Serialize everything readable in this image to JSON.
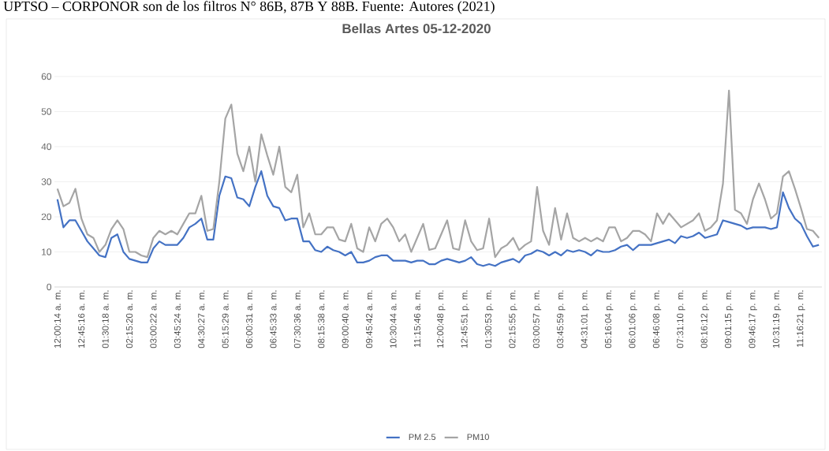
{
  "chart_data": {
    "type": "line",
    "title": "Bellas Artes 05-12-2020",
    "annotations": [
      "UPTSO – CORPONOR son de los filtros N° 86B, 87B Y 88B. Fuente: Autores (2021)"
    ],
    "categories": [
      "12:00:14 a. m.",
      null,
      null,
      null,
      "12:45:16 a. m.",
      null,
      null,
      null,
      "01:30:18 a. m.",
      null,
      null,
      null,
      "02:15:20 a. m.",
      null,
      null,
      null,
      "03:00:22 a. m.",
      null,
      null,
      null,
      "03:45:24 a. m.",
      null,
      null,
      null,
      "04:30:27 a. m.",
      null,
      null,
      null,
      "05:15:29 a. m.",
      null,
      null,
      null,
      "06:00:31 a. m.",
      null,
      null,
      null,
      "06:45:33 a. m.",
      null,
      null,
      null,
      "07:30:36 a. m.",
      null,
      null,
      null,
      "08:15:38 a. m.",
      null,
      null,
      null,
      "09:00:40 a. m.",
      null,
      null,
      null,
      "09:45:42 a. m.",
      null,
      null,
      null,
      "10:30:44 a. m.",
      null,
      null,
      null,
      "11:15:46 a. m.",
      null,
      null,
      null,
      "12:00:48 p. m.",
      null,
      null,
      null,
      "12:45:51 p. m.",
      null,
      null,
      null,
      "01:30:53 p. m.",
      null,
      null,
      null,
      "02:15:55 p. m.",
      null,
      null,
      null,
      "03:00:57 p. m.",
      null,
      null,
      null,
      "03:45:59 p. m.",
      null,
      null,
      null,
      "04:31:01 p. m.",
      null,
      null,
      null,
      "05:16:04 p. m.",
      null,
      null,
      null,
      "06:01:06 p. m.",
      null,
      null,
      null,
      "06:46:08 p. m.",
      null,
      null,
      null,
      "07:31:10 p. m.",
      null,
      null,
      null,
      "08:16:12 p. m.",
      null,
      null,
      null,
      "09:01:15 p. m.",
      null,
      null,
      null,
      "09:46:17 p. m.",
      null,
      null,
      null,
      "10:31:19 p. m.",
      null,
      null,
      null,
      "11:16:21 p. m.",
      null,
      null,
      null
    ],
    "series": [
      {
        "name": "PM 2.5",
        "color": "#4472c4",
        "values": [
          25,
          17,
          19,
          19,
          16,
          13,
          11,
          9,
          8.5,
          14,
          15,
          10,
          8,
          7.5,
          7,
          7,
          11,
          13,
          12,
          12,
          12,
          14,
          17,
          18,
          19.5,
          13.5,
          13.5,
          26,
          31.5,
          31,
          25.5,
          25,
          23,
          28.5,
          33,
          26,
          23,
          22.5,
          19,
          19.5,
          19.5,
          13,
          13,
          10.5,
          10,
          11.5,
          10.5,
          10,
          9,
          10,
          7,
          7,
          7.5,
          8.5,
          9,
          9,
          7.5,
          7.5,
          7.5,
          7,
          7.5,
          7.5,
          6.5,
          6.5,
          7.5,
          8,
          7.5,
          7,
          7.5,
          8.5,
          6.5,
          6,
          6.5,
          6,
          7,
          7.5,
          8,
          7,
          9,
          9.5,
          10.5,
          10,
          9,
          10,
          9,
          10.5,
          10,
          10.5,
          10,
          9,
          10.5,
          10,
          10,
          10.5,
          11.5,
          12,
          10.5,
          12,
          12,
          12,
          12.5,
          13,
          13.5,
          12.5,
          14.5,
          14,
          14.5,
          15.5,
          14,
          14.5,
          15,
          19,
          18.5,
          18,
          17.5,
          16.5,
          17,
          17,
          17,
          16.5,
          17,
          27,
          22.5,
          19.5,
          18,
          14.5,
          11.5,
          12
        ]
      },
      {
        "name": "PM10",
        "color": "#a5a5a5",
        "values": [
          28,
          23,
          24,
          28,
          19.5,
          15,
          14,
          10,
          12,
          16.5,
          19,
          16.5,
          10,
          10,
          9,
          8.5,
          14,
          16,
          15,
          16,
          15,
          18,
          21,
          21,
          26,
          16,
          16.5,
          30,
          48,
          52,
          38,
          33,
          40,
          30,
          43.5,
          37.5,
          32,
          40,
          28.5,
          27,
          32,
          17,
          21,
          15,
          15,
          17,
          17,
          13.5,
          13,
          18,
          11,
          10,
          17,
          13,
          18,
          19.5,
          17,
          13,
          15,
          10,
          14,
          18,
          10.6,
          11,
          15,
          19,
          11,
          10.6,
          19,
          13,
          10.5,
          11,
          19.5,
          8.5,
          11,
          12,
          14,
          10.5,
          12,
          13,
          28.5,
          16,
          12,
          22.5,
          13.5,
          21,
          14,
          13,
          14,
          13,
          14,
          13,
          17,
          17,
          13,
          14,
          16,
          16,
          15,
          13,
          21,
          18,
          21,
          19,
          17,
          18,
          19,
          21,
          16,
          17,
          19,
          29.5,
          56,
          22,
          21,
          18,
          25,
          29.5,
          25,
          19.5,
          21,
          31.5,
          33,
          28,
          22.5,
          16.5,
          16,
          14
        ]
      }
    ],
    "ylim": [
      0,
      60
    ],
    "yticks": [
      0,
      10,
      20,
      30,
      40,
      50,
      60
    ],
    "grid": "y",
    "legend": "bottom"
  }
}
